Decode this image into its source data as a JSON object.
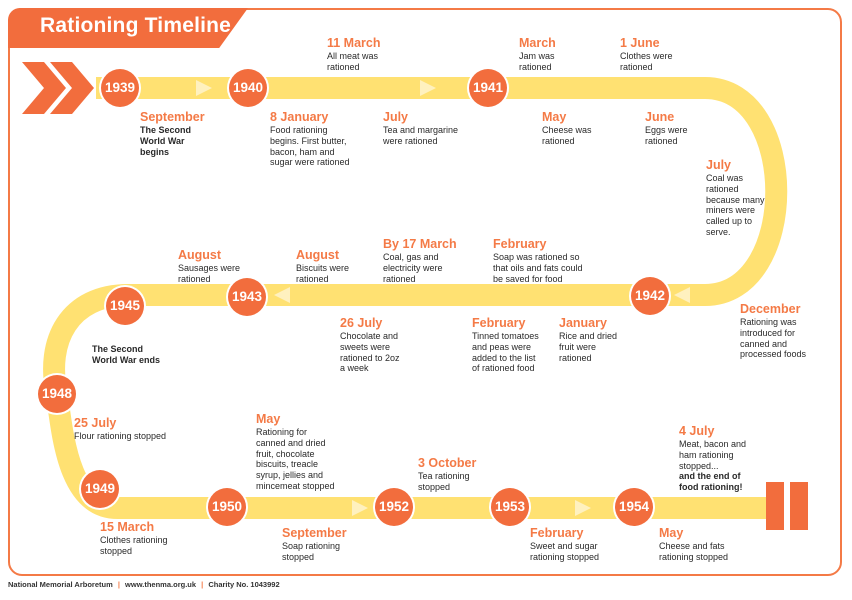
{
  "title": "Rationing Timeline",
  "colors": {
    "accent": "#f26d3d",
    "track": "#ffe172",
    "text": "#2a2a2a",
    "label": "#f47a46"
  },
  "years": [
    {
      "id": "1939",
      "label": "1939"
    },
    {
      "id": "1940",
      "label": "1940"
    },
    {
      "id": "1941",
      "label": "1941"
    },
    {
      "id": "1942",
      "label": "1942"
    },
    {
      "id": "1943",
      "label": "1943"
    },
    {
      "id": "1945",
      "label": "1945"
    },
    {
      "id": "1948",
      "label": "1948"
    },
    {
      "id": "1949",
      "label": "1949"
    },
    {
      "id": "1950",
      "label": "1950"
    },
    {
      "id": "1952",
      "label": "1952"
    },
    {
      "id": "1953",
      "label": "1953"
    },
    {
      "id": "1954",
      "label": "1954"
    }
  ],
  "events": [
    {
      "id": "sep-1939",
      "month": "September",
      "lines": [
        "The Second",
        "World War",
        "begins"
      ],
      "bold": true
    },
    {
      "id": "jan-1940",
      "month": "8 January",
      "lines": [
        "Food rationing",
        "begins. First butter,",
        "bacon, ham and",
        "sugar were rationed"
      ]
    },
    {
      "id": "mar-1940",
      "month": "11 March",
      "lines": [
        "All meat was",
        "rationed"
      ]
    },
    {
      "id": "jul-1940",
      "month": "July",
      "lines": [
        "Tea and margarine",
        "were rationed"
      ]
    },
    {
      "id": "mar-1941",
      "month": "March",
      "lines": [
        "Jam was",
        "rationed"
      ]
    },
    {
      "id": "may-1941",
      "month": "May",
      "lines": [
        "Cheese was",
        "rationed"
      ]
    },
    {
      "id": "jun-1941-clothes",
      "month": "1 June",
      "lines": [
        "Clothes were",
        "rationed"
      ]
    },
    {
      "id": "jun-1941-eggs",
      "month": "June",
      "lines": [
        "Eggs were",
        "rationed"
      ]
    },
    {
      "id": "jul-1941",
      "month": "July",
      "lines": [
        "Coal was",
        "rationed",
        "because many",
        "miners were",
        "called up to",
        "serve."
      ]
    },
    {
      "id": "feb-1942-soap",
      "month": "February",
      "lines": [
        "Soap was rationed so",
        "that oils and fats could",
        "be saved for food"
      ]
    },
    {
      "id": "mar-1942",
      "month": "By 17 March",
      "lines": [
        "Coal, gas and",
        "electricity were",
        "rationed"
      ]
    },
    {
      "id": "aug-1942",
      "month": "August",
      "lines": [
        "Biscuits were",
        "rationed"
      ]
    },
    {
      "id": "aug-1943",
      "month": "August",
      "lines": [
        "Sausages were",
        "rationed"
      ]
    },
    {
      "id": "dec-1942",
      "month": "December",
      "lines": [
        "Rationing was",
        "introduced for",
        "canned and",
        "processed foods"
      ]
    },
    {
      "id": "jan-1942",
      "month": "January",
      "lines": [
        "Rice and dried",
        "fruit were",
        "rationed"
      ]
    },
    {
      "id": "feb-1942-tins",
      "month": "February",
      "lines": [
        "Tinned tomatoes",
        "and peas were",
        "added to the list",
        "of rationed food"
      ]
    },
    {
      "id": "jul-1942",
      "month": "26 July",
      "lines": [
        "Chocolate and",
        "sweets were",
        "rationed to 2oz",
        "a week"
      ]
    },
    {
      "id": "war-ends",
      "month": "",
      "lines": [
        "The Second",
        "World War ends"
      ],
      "bold": true
    },
    {
      "id": "jul-1948",
      "month": "25 July",
      "lines": [
        "Flour rationing stopped"
      ]
    },
    {
      "id": "mar-1949",
      "month": "15 March",
      "lines": [
        "Clothes rationing",
        "stopped"
      ]
    },
    {
      "id": "may-1950",
      "month": "May",
      "lines": [
        "Rationing for",
        "canned and dried",
        "fruit, chocolate",
        "biscuits, treacle",
        "syrup, jellies and",
        "mincemeat stopped"
      ]
    },
    {
      "id": "sep-1950",
      "month": "September",
      "lines": [
        "Soap rationing",
        "stopped"
      ]
    },
    {
      "id": "oct-1952",
      "month": "3 October",
      "lines": [
        "Tea rationing",
        "stopped"
      ]
    },
    {
      "id": "feb-1953",
      "month": "February",
      "lines": [
        "Sweet and sugar",
        "rationing stopped"
      ]
    },
    {
      "id": "jul-1954",
      "month": "4 July",
      "lines": [
        "Meat, bacon and",
        "ham rationing",
        "stopped..."
      ],
      "extra": [
        "and the end of",
        "food rationing!"
      ]
    },
    {
      "id": "may-1954",
      "month": "May",
      "lines": [
        "Cheese and fats",
        "rationing stopped"
      ]
    }
  ],
  "footer": {
    "org": "National Memorial Arboretum",
    "site": "www.thenma.org.uk",
    "charity": "Charity No. 1043992",
    "separator": "|"
  }
}
